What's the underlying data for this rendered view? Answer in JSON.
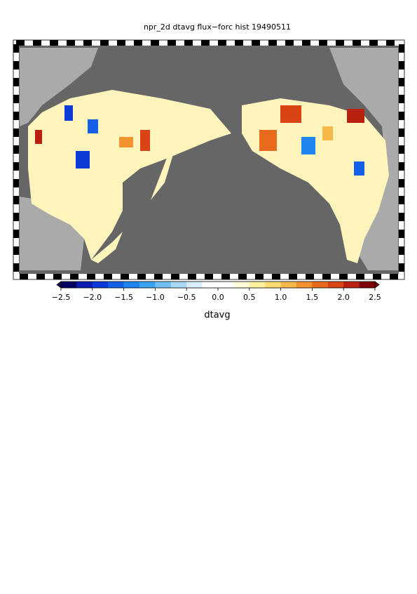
{
  "title": "npr_2d dtavg flux−forc hist 19490511",
  "colorbar": {
    "label": "dtavg",
    "lim": [
      -2.5,
      2.5
    ],
    "ticks": [
      {
        "value": -2.5,
        "label": "−2.5"
      },
      {
        "value": -2.0,
        "label": "−2.0"
      },
      {
        "value": -1.5,
        "label": "−1.5"
      },
      {
        "value": -1.0,
        "label": "−1.0"
      },
      {
        "value": -0.5,
        "label": "−0.5"
      },
      {
        "value": 0,
        "label": "0.0"
      },
      0.5,
      {
        "value": 1,
        "label": "1.0"
      },
      1.5,
      {
        "value": 2,
        "label": "2.0"
      },
      2.5
    ],
    "colors": [
      "#08005e",
      "#0a1fb0",
      "#0c3bd8",
      "#1560e8",
      "#1d84f0",
      "#3aa3f2",
      "#72c0f5",
      "#a8daf6",
      "#d8eef8",
      "#ffffff",
      "#ffffff",
      "#fffbd6",
      "#fff0a0",
      "#fbdc70",
      "#f7b84a",
      "#f29230",
      "#e86a1c",
      "#d84416",
      "#b82010",
      "#80000a"
    ]
  }
}
